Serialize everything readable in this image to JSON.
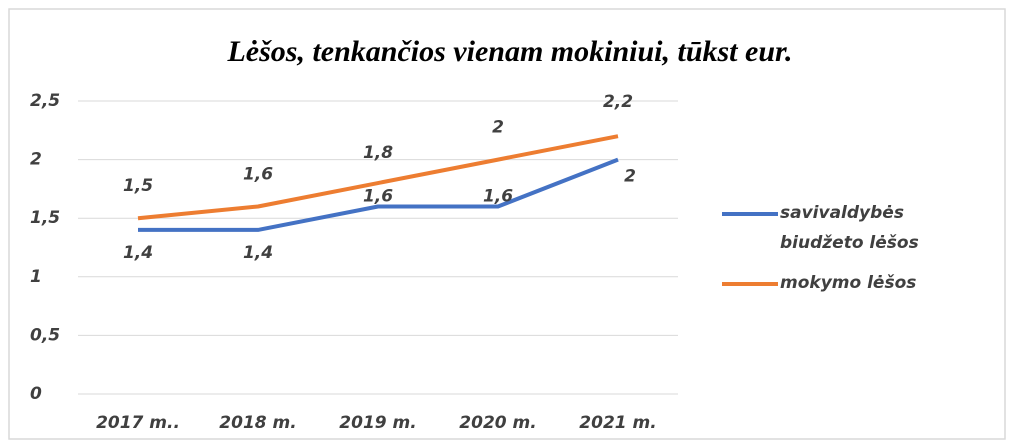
{
  "chart_data": {
    "type": "line",
    "title": "Lėšos, tenkančios vienam mokiniui, tūkst eur.",
    "categories": [
      "2017 m..",
      "2018 m.",
      "2019 m.",
      "2020 m.",
      "2021 m."
    ],
    "series": [
      {
        "name": "savivaldybės biudžeto lėšos",
        "color": "#4472c4",
        "values": [
          1.4,
          1.4,
          1.6,
          1.6,
          2
        ],
        "value_labels": [
          "1,4",
          "1,4",
          "1,6",
          "1,6",
          "2"
        ]
      },
      {
        "name": "mokymo lėšos",
        "color": "#ed7d31",
        "values": [
          1.5,
          1.6,
          1.8,
          2,
          2.2
        ],
        "value_labels": [
          "1,5",
          "1,6",
          "1,8",
          "2",
          "2,2"
        ]
      }
    ],
    "ylim": [
      0,
      2.5
    ],
    "yticks": [
      0,
      {
        "value": 0.5,
        "label": "0,5"
      },
      1,
      {
        "value": 1.5,
        "label": "1,5"
      },
      2,
      {
        "value": 2.5,
        "label": "2,5"
      }
    ],
    "grid": true
  }
}
